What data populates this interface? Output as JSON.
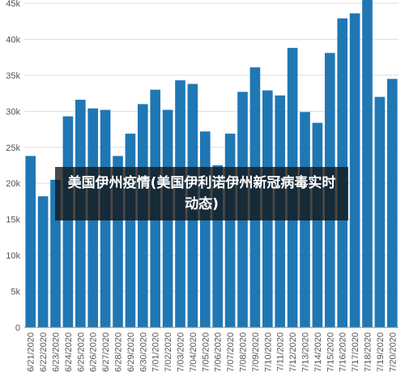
{
  "overlay": {
    "title": "美国伊州疫情(美国伊利诺伊州新冠病毒实时动态)"
  },
  "chart_data": {
    "type": "bar",
    "title": "",
    "xlabel": "",
    "ylabel": "",
    "ylim": [
      0,
      45000
    ],
    "ytick_values": [
      0,
      5000,
      10000,
      15000,
      20000,
      25000,
      30000,
      35000,
      40000,
      45000
    ],
    "ytick_labels": [
      "0",
      "5k",
      "10k",
      "15k",
      "20k",
      "25k",
      "30k",
      "35k",
      "40k",
      "45k"
    ],
    "grid": true,
    "bar_color": "#1f77b4",
    "categories": [
      "6/21/2020",
      "6/22/2020",
      "6/23/2020",
      "6/24/2020",
      "6/25/2020",
      "6/26/2020",
      "6/27/2020",
      "6/28/2020",
      "6/29/2020",
      "6/30/2020",
      "7/01/2020",
      "7/02/2020",
      "7/03/2020",
      "7/04/2020",
      "7/05/2020",
      "7/06/2020",
      "7/07/2020",
      "7/08/2020",
      "7/09/2020",
      "7/10/2020",
      "7/11/2020",
      "7/12/2020",
      "7/13/2020",
      "7/14/2020",
      "7/15/2020",
      "7/16/2020",
      "7/17/2020",
      "7/18/2020",
      "7/19/2020",
      "7/20/2020"
    ],
    "values": [
      23800,
      18200,
      20500,
      29300,
      31600,
      30400,
      30200,
      23800,
      26900,
      31000,
      33000,
      30200,
      34300,
      33800,
      27200,
      22500,
      26900,
      32700,
      36100,
      32900,
      32200,
      38800,
      29900,
      28400,
      38100,
      42900,
      43600,
      46000,
      32000,
      34500
    ]
  }
}
